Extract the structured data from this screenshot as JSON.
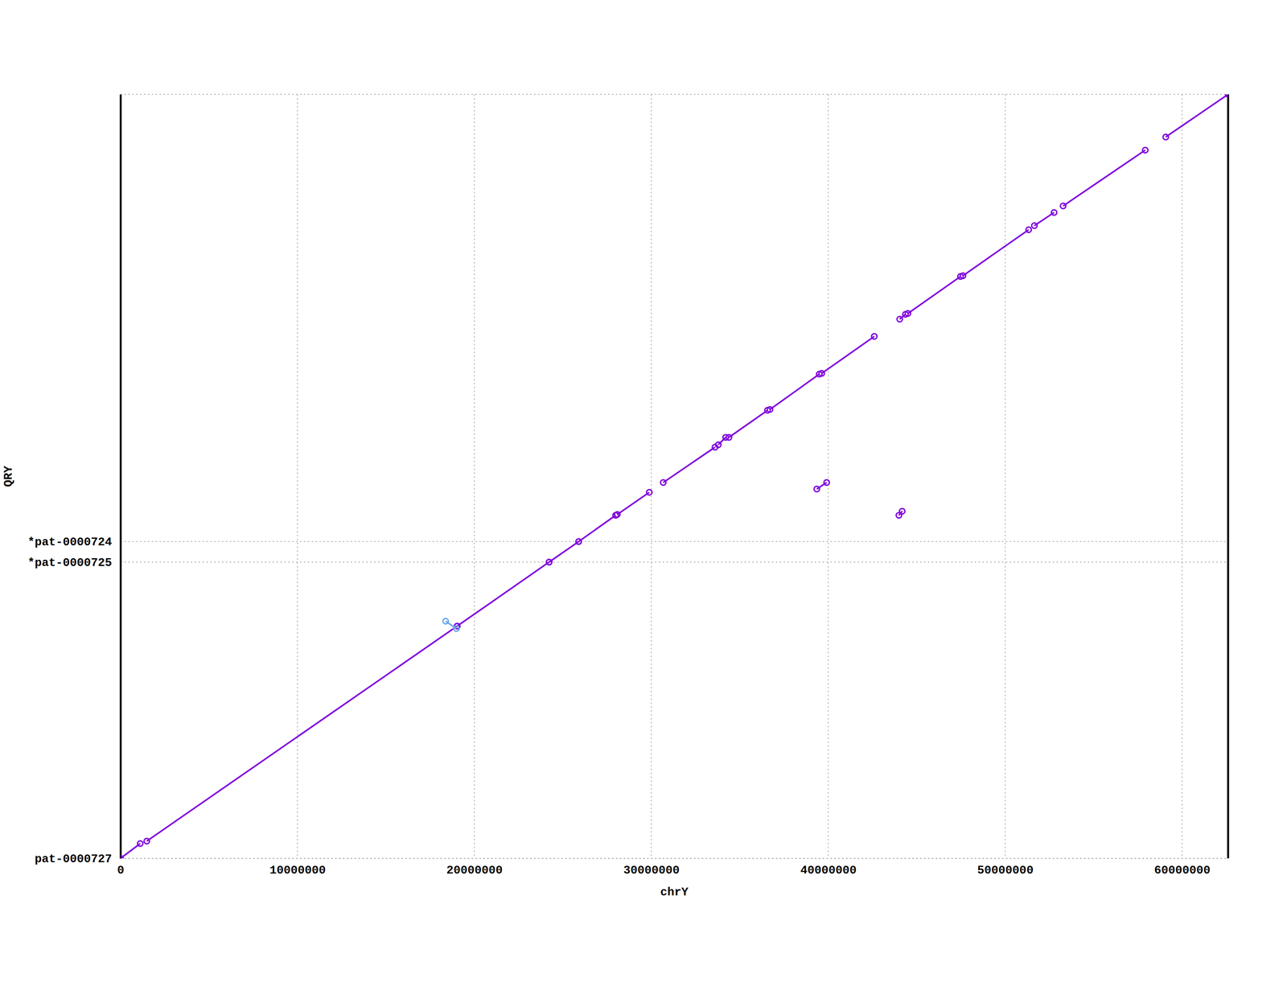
{
  "chart_data": {
    "type": "dotplot",
    "x_label": "chrY",
    "y_label": "QRY",
    "xlim": [
      0,
      62600000
    ],
    "ylim": [
      0,
      62600000
    ],
    "xticks": [
      0,
      10000000,
      20000000,
      30000000,
      40000000,
      50000000,
      60000000
    ],
    "yticks": [
      {
        "value": 0,
        "label": "pat-0000727"
      },
      {
        "value": 24274000,
        "label": "*pat-0000725"
      },
      {
        "value": 25955000,
        "label": "*pat-0000724"
      }
    ],
    "grid": true,
    "series": [
      {
        "color": "#8000dd",
        "marker": "circle",
        "line_style": "solid",
        "segments": [
          {
            "x": [
              0,
              1114000
            ],
            "y": [
              0,
              1210000
            ]
          },
          {
            "x": [
              1485000,
              19027000
            ],
            "y": [
              1412000,
              19029000
            ]
          },
          {
            "x": [
              19027000,
              24224000
            ],
            "y": [
              19029000,
              24274000
            ]
          },
          {
            "x": [
              24224000,
              25895000
            ],
            "y": [
              24274000,
              25955000
            ]
          },
          {
            "x": [
              25895000,
              27983000
            ],
            "y": [
              25955000,
              28106000
            ]
          },
          {
            "x": [
              28076000,
              29886000
            ],
            "y": [
              28174000,
              29989000
            ]
          },
          {
            "x": [
              30675000,
              33599000
            ],
            "y": [
              30796000,
              33687000
            ]
          },
          {
            "x": [
              33784000,
              34202000
            ],
            "y": [
              33889000,
              34494000
            ]
          },
          {
            "x": [
              34388000,
              36569000
            ],
            "y": [
              34494000,
              36713000
            ]
          },
          {
            "x": [
              36708000,
              39492000
            ],
            "y": [
              36780000,
              39672000
            ]
          },
          {
            "x": [
              39632000,
              42602000
            ],
            "y": [
              39739000,
              42765000
            ]
          },
          {
            "x": [
              44040000,
              44365000
            ],
            "y": [
              44177000,
              44580000
            ]
          },
          {
            "x": [
              44504000,
              47474000
            ],
            "y": [
              44647000,
              47673000
            ]
          },
          {
            "x": [
              47614000,
              51326000
            ],
            "y": [
              47740000,
              51506000
            ]
          },
          {
            "x": [
              51651000,
              52765000
            ],
            "y": [
              51842000,
              52918000
            ]
          },
          {
            "x": [
              53275000,
              57916000
            ],
            "y": [
              53456000,
              58028000
            ]
          },
          {
            "x": [
              59076000,
              62600000
            ],
            "y": [
              59104000,
              62600000
            ]
          },
          {
            "x": [
              39353000,
              39910000
            ],
            "y": [
              30258000,
              30796000
            ]
          },
          {
            "x": [
              43994000,
              44179000
            ],
            "y": [
              28106000,
              28443000
            ]
          }
        ]
      },
      {
        "color": "#6aa8e8",
        "marker": "circle",
        "line_style": "solid",
        "segments": [
          {
            "x": [
              18377000,
              18980000
            ],
            "y": [
              19432000,
              18827000
            ]
          }
        ]
      }
    ]
  }
}
